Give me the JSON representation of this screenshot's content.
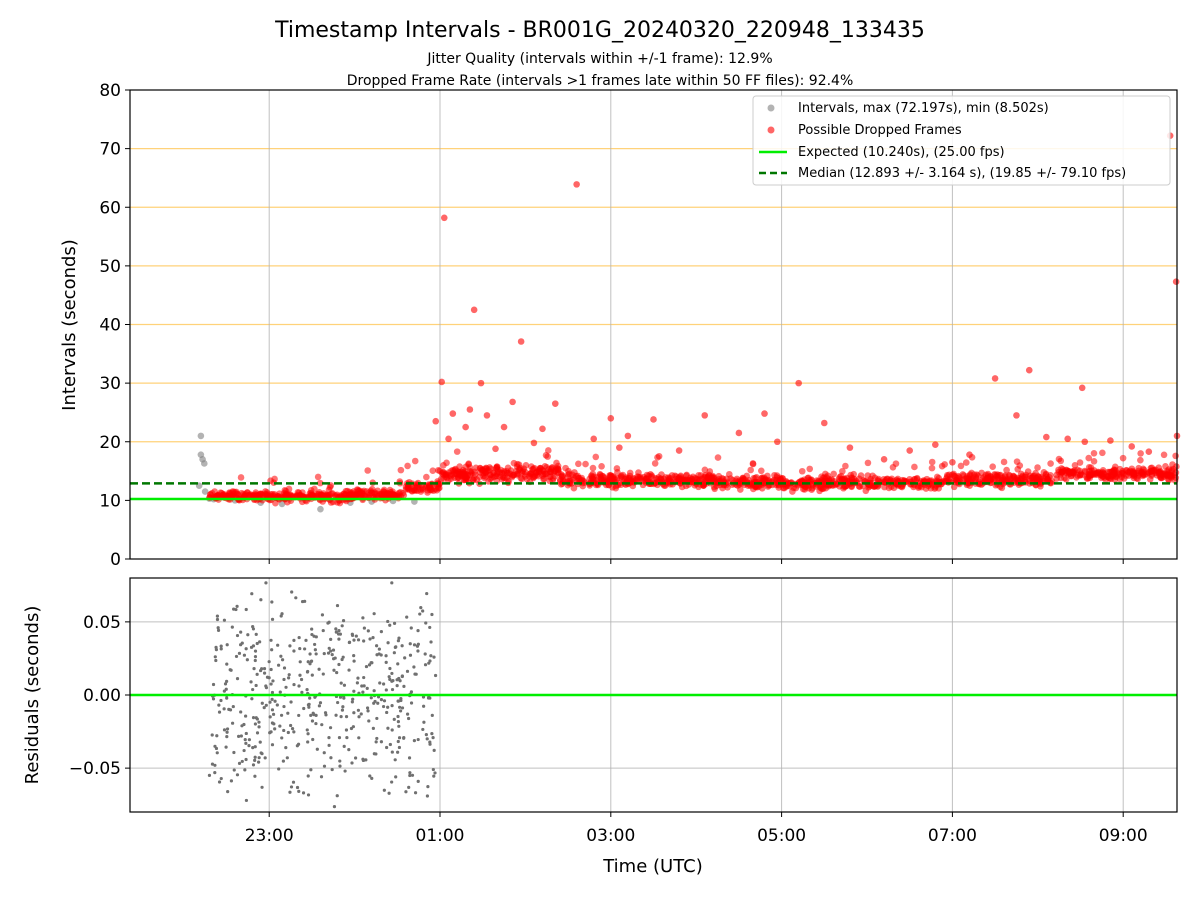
{
  "chart_data": {
    "title": "Timestamp Intervals - BR001G_20240320_220948_133435",
    "subtitle_1": "Jitter Quality (intervals within +/-1 frame): 12.9%",
    "subtitle_2": "Dropped Frame Rate (intervals >1 frames late within 50 FF files): 92.4%",
    "xlabel": "Time (UTC)",
    "x_ticks": [
      "23:00",
      "01:00",
      "03:00",
      "05:00",
      "07:00",
      "09:00"
    ],
    "x_tick_hours": [
      23,
      25,
      27,
      29,
      31,
      33
    ],
    "xlim_hours": [
      21.37,
      33.63
    ],
    "panels": [
      {
        "type": "scatter",
        "ylabel": "Intervals (seconds)",
        "ylim": [
          0,
          80
        ],
        "y_ticks": [
          "0",
          "10",
          "20",
          "30",
          "40",
          "50",
          "60",
          "70",
          "80"
        ],
        "y_tick_values": [
          0,
          10,
          20,
          30,
          40,
          50,
          60,
          70,
          80
        ],
        "reference_lines": [
          20,
          30,
          40,
          50,
          60,
          70
        ],
        "reference_line_color": "#ffd27a",
        "grid_x": true,
        "legend_position": "top-right",
        "legend": [
          "Intervals, max (72.197s), min (8.502s)",
          "Possible Dropped Frames",
          "Expected (10.240s), (25.00 fps)",
          "Median (12.893 +/- 3.164 s), (19.85 +/- 79.10 fps)"
        ],
        "expected_value": 10.24,
        "expected_color": "#00ee00",
        "median_value": 12.893,
        "median_color": "#007700",
        "series": [
          {
            "name": "Intervals, max (72.197s), min (8.502s)",
            "color": "#808080",
            "points": [
              [
                22.2,
                21.0
              ],
              [
                22.2,
                17.8
              ],
              [
                22.22,
                17.0
              ],
              [
                22.24,
                16.3
              ],
              [
                22.18,
                12.5
              ],
              [
                22.3,
                10.3
              ],
              [
                22.25,
                11.5
              ],
              [
                22.35,
                10.2
              ],
              [
                22.6,
                10.0
              ],
              [
                22.9,
                9.6
              ],
              [
                23.15,
                9.4
              ],
              [
                23.4,
                10.5
              ],
              [
                23.6,
                8.5
              ],
              [
                23.95,
                9.6
              ],
              [
                24.2,
                9.8
              ],
              [
                24.45,
                9.9
              ],
              [
                24.7,
                9.8
              ]
            ]
          },
          {
            "name": "Possible Dropped Frames",
            "color": "#ff0000",
            "points": [
              [
                24.95,
                23.5
              ],
              [
                25.02,
                30.2
              ],
              [
                25.05,
                58.2
              ],
              [
                25.1,
                20.5
              ],
              [
                25.15,
                24.8
              ],
              [
                25.3,
                22.5
              ],
              [
                25.35,
                25.5
              ],
              [
                25.4,
                42.5
              ],
              [
                25.48,
                30.0
              ],
              [
                25.55,
                24.5
              ],
              [
                25.65,
                18.8
              ],
              [
                25.75,
                22.5
              ],
              [
                25.85,
                26.8
              ],
              [
                25.95,
                37.1
              ],
              [
                26.1,
                19.8
              ],
              [
                26.2,
                22.2
              ],
              [
                26.35,
                26.5
              ],
              [
                26.6,
                63.9
              ],
              [
                26.8,
                20.5
              ],
              [
                27.0,
                24.0
              ],
              [
                27.1,
                19.0
              ],
              [
                27.2,
                21.0
              ],
              [
                27.5,
                23.8
              ],
              [
                27.8,
                18.5
              ],
              [
                28.1,
                24.5
              ],
              [
                28.5,
                21.5
              ],
              [
                28.8,
                24.8
              ],
              [
                28.95,
                20.0
              ],
              [
                29.2,
                30.0
              ],
              [
                29.5,
                23.2
              ],
              [
                29.8,
                19.0
              ],
              [
                30.2,
                17.0
              ],
              [
                30.5,
                18.5
              ],
              [
                30.8,
                19.5
              ],
              [
                31.0,
                16.5
              ],
              [
                31.2,
                17.8
              ],
              [
                31.5,
                30.8
              ],
              [
                31.75,
                24.5
              ],
              [
                31.9,
                32.2
              ],
              [
                32.1,
                20.8
              ],
              [
                32.35,
                20.5
              ],
              [
                32.52,
                29.2
              ],
              [
                32.55,
                20.0
              ],
              [
                32.85,
                20.2
              ],
              [
                33.1,
                19.2
              ],
              [
                33.3,
                18.3
              ],
              [
                33.55,
                72.2
              ],
              [
                33.62,
                47.3
              ],
              [
                33.63,
                21.0
              ]
            ]
          }
        ],
        "dense_bands": [
          {
            "x": [
              22.3,
              22.85
            ],
            "y_center": 10.8,
            "spread": 1.0
          },
          {
            "x": [
              22.85,
              24.0
            ],
            "y_center": 10.6,
            "spread": 1.4
          },
          {
            "x": [
              24.0,
              24.6
            ],
            "y_center": 11.0,
            "spread": 1.2
          },
          {
            "x": [
              24.6,
              25.0
            ],
            "y_center": 12.4,
            "spread": 1.6
          },
          {
            "x": [
              25.0,
              26.4
            ],
            "y_center": 14.6,
            "spread": 2.2
          },
          {
            "x": [
              26.4,
              28.2
            ],
            "y_center": 13.4,
            "spread": 1.8
          },
          {
            "x": [
              28.2,
              30.9
            ],
            "y_center": 13.0,
            "spread": 1.6
          },
          {
            "x": [
              30.9,
              32.2
            ],
            "y_center": 13.6,
            "spread": 1.7
          },
          {
            "x": [
              32.2,
              33.63
            ],
            "y_center": 14.6,
            "spread": 1.6
          }
        ]
      },
      {
        "type": "scatter",
        "ylabel": "Residuals (seconds)",
        "ylim": [
          -0.08,
          0.08
        ],
        "y_ticks": [
          "−0.05",
          "0.00",
          "0.05"
        ],
        "y_tick_values": [
          -0.05,
          0.0,
          0.05
        ],
        "grid": true,
        "zero_line_color": "#00ee00",
        "residual_color": "#707070",
        "residual_x_range": [
          22.3,
          24.95
        ],
        "residual_spread": 0.08
      }
    ]
  }
}
